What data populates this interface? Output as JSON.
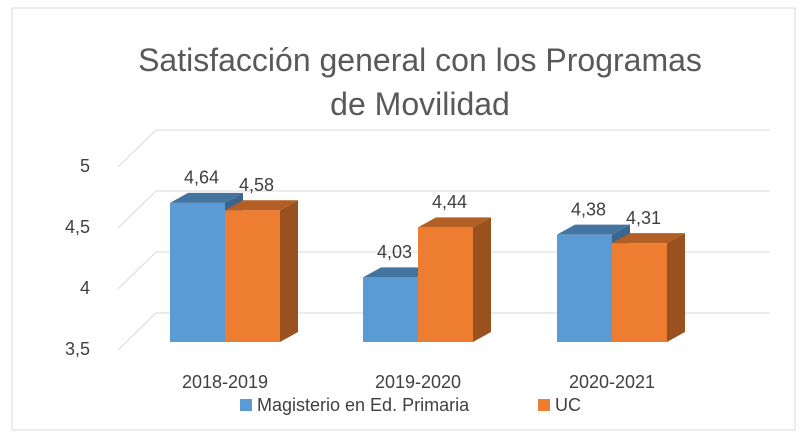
{
  "chart_data": {
    "type": "bar3d",
    "title": "Satisfacción general con los Programas de Movilidad",
    "categories": [
      "2018-2019",
      "2019-2020",
      "2020-2021"
    ],
    "series": [
      {
        "name": "Magisterio en Ed. Primaria",
        "color": "#5b9bd5",
        "values": [
          4.64,
          4.03,
          4.38
        ],
        "value_labels": [
          "4,64",
          "4,03",
          "4,38"
        ]
      },
      {
        "name": "UC",
        "color": "#ed7d31",
        "values": [
          4.58,
          4.44,
          4.31
        ],
        "value_labels": [
          "4,58",
          "4,44",
          "4,31"
        ]
      }
    ],
    "ylim": [
      3.5,
      5
    ],
    "yticks": [
      {
        "value": 3.5,
        "label": "3,5"
      },
      4,
      {
        "value": 4.5,
        "label": "4,5"
      },
      5
    ],
    "grid": true,
    "legend": "bottom"
  }
}
